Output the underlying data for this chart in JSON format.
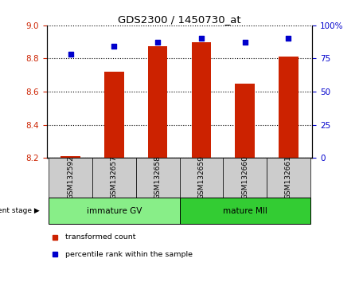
{
  "title": "GDS2300 / 1450730_at",
  "samples": [
    "GSM132592",
    "GSM132657",
    "GSM132658",
    "GSM132659",
    "GSM132660",
    "GSM132661"
  ],
  "bar_values": [
    8.21,
    8.72,
    8.875,
    8.9,
    8.65,
    8.81
  ],
  "percentile_values": [
    78,
    84,
    87,
    90,
    87,
    90
  ],
  "groups": [
    {
      "label": "immature GV",
      "start": 0,
      "end": 2,
      "color": "#88ee88"
    },
    {
      "label": "mature MII",
      "start": 3,
      "end": 5,
      "color": "#33cc33"
    }
  ],
  "ylim_left": [
    8.2,
    9.0
  ],
  "ylim_right": [
    0,
    100
  ],
  "yticks_left": [
    8.2,
    8.4,
    8.6,
    8.8,
    9.0
  ],
  "yticks_right": [
    0,
    25,
    50,
    75,
    100
  ],
  "ytick_labels_right": [
    "0",
    "25",
    "50",
    "75",
    "100%"
  ],
  "bar_color": "#cc2200",
  "dot_color": "#0000cc",
  "bar_width": 0.45,
  "legend_bar_label": "transformed count",
  "legend_dot_label": "percentile rank within the sample",
  "group_label": "development stage",
  "tick_color_left": "#cc2200",
  "tick_color_right": "#0000cc",
  "sample_cell_color": "#cccccc",
  "xlim": [
    -0.55,
    5.55
  ]
}
